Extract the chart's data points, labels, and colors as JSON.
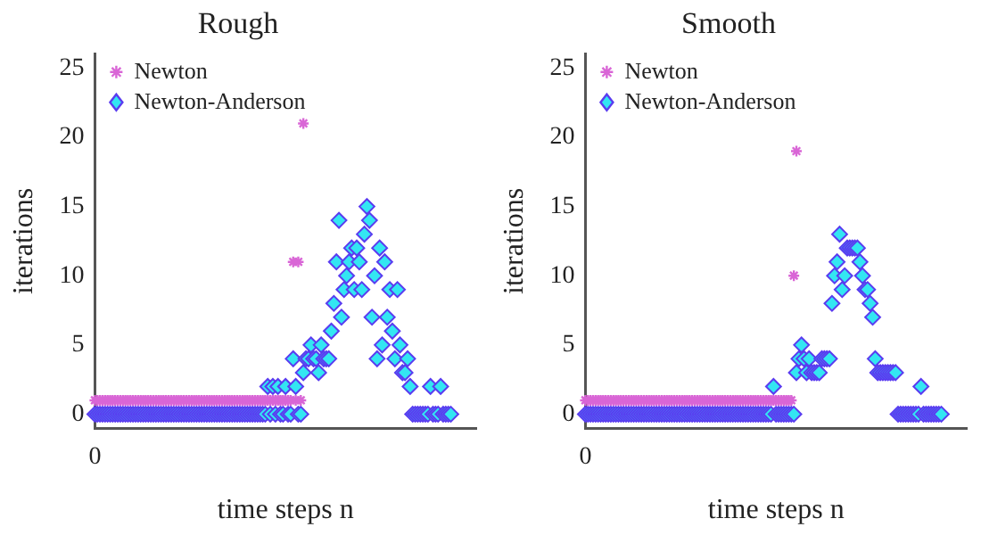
{
  "chart_data": [
    {
      "type": "scatter",
      "title": "Rough",
      "xlabel": "time steps n",
      "ylabel": "iterations",
      "categories": [
        "0",
        null,
        null,
        null,
        null,
        null,
        null,
        null,
        null,
        null,
        null,
        null,
        null,
        null,
        null,
        null,
        null,
        null,
        null,
        null,
        null,
        null,
        null,
        null,
        null,
        null,
        null,
        null,
        null,
        null,
        null,
        null,
        null,
        null,
        null,
        null,
        null,
        null,
        null,
        null,
        null,
        null,
        null,
        null,
        null,
        null,
        null,
        null,
        null,
        null,
        null,
        null,
        null,
        null,
        null,
        null,
        null,
        null,
        null,
        null,
        null,
        null,
        null,
        null,
        null,
        null,
        null,
        null,
        null,
        null,
        null,
        null,
        null,
        null,
        null,
        null,
        null,
        null,
        null,
        null,
        null,
        null,
        null,
        null,
        null,
        null,
        null,
        null,
        null,
        null,
        null,
        null,
        null,
        null,
        null,
        null,
        null,
        null,
        null,
        null,
        null,
        null,
        null,
        null,
        null,
        null,
        null,
        null,
        null,
        null,
        null,
        null,
        null,
        null,
        null,
        null,
        null,
        null,
        null,
        null,
        null,
        null,
        null,
        null,
        null,
        null,
        null,
        null,
        null,
        null,
        null,
        null,
        null,
        null,
        null,
        null,
        null,
        null,
        null,
        null,
        null,
        null,
        null,
        null,
        null,
        null,
        null,
        null,
        null,
        null,
        null
      ],
      "ylim": [
        -1,
        26
      ],
      "yticks": [
        0,
        5,
        10,
        15,
        20,
        25
      ],
      "grid": false,
      "legend": "top left",
      "series": [
        {
          "name": "Newton",
          "color": "#d966d6",
          "marker": "cross",
          "values": [
            1,
            1,
            1,
            1,
            1,
            1,
            1,
            1,
            1,
            1,
            1,
            1,
            1,
            1,
            1,
            1,
            1,
            1,
            1,
            1,
            1,
            1,
            1,
            1,
            1,
            1,
            1,
            1,
            1,
            1,
            1,
            1,
            1,
            1,
            1,
            1,
            1,
            1,
            1,
            1,
            1,
            1,
            1,
            1,
            1,
            1,
            1,
            1,
            1,
            1,
            1,
            1,
            1,
            1,
            1,
            1,
            1,
            1,
            1,
            1,
            1,
            1,
            1,
            1,
            1,
            1,
            1,
            1,
            1,
            1,
            1,
            1,
            1,
            1,
            1,
            1,
            1,
            1,
            11,
            1,
            11,
            1,
            21,
            null,
            null,
            null,
            null,
            null,
            null,
            null,
            null,
            null,
            null,
            null,
            null,
            null,
            null,
            null,
            null,
            null,
            null,
            null,
            null,
            null,
            null,
            null,
            null,
            null,
            null,
            null,
            null,
            null,
            null,
            null,
            null,
            null,
            null,
            null,
            null,
            null,
            null,
            null,
            null,
            null,
            null,
            null,
            null,
            null,
            null,
            null,
            null,
            null,
            null,
            null,
            null,
            null,
            null,
            null,
            null,
            null,
            null,
            null,
            null,
            null,
            null,
            null,
            null,
            null,
            null,
            null,
            null
          ]
        },
        {
          "name": "Newton-Anderson",
          "color": "#33e6f2",
          "marker": "diamond",
          "values": [
            0,
            0,
            0,
            0,
            0,
            0,
            0,
            0,
            0,
            0,
            0,
            0,
            0,
            0,
            0,
            0,
            0,
            0,
            0,
            0,
            0,
            0,
            0,
            0,
            0,
            0,
            0,
            0,
            0,
            0,
            0,
            0,
            0,
            0,
            0,
            0,
            0,
            0,
            0,
            0,
            0,
            0,
            0,
            0,
            0,
            0,
            0,
            0,
            0,
            0,
            0,
            0,
            0,
            0,
            0,
            0,
            0,
            0,
            0,
            0,
            0,
            0,
            0,
            0,
            0,
            0,
            0,
            0,
            2,
            0,
            2,
            0,
            2,
            0,
            0,
            2,
            0,
            0,
            4,
            2,
            0,
            0,
            3,
            4,
            4,
            5,
            4,
            4,
            3,
            5,
            4,
            4,
            4,
            6,
            8,
            11,
            14,
            7,
            9,
            10,
            11,
            12,
            9,
            12,
            11,
            9,
            13,
            15,
            14,
            7,
            10,
            4,
            12,
            5,
            11,
            7,
            9,
            6,
            4,
            9,
            5,
            3,
            3,
            4,
            2,
            0,
            0,
            0,
            0,
            0,
            0,
            0,
            2,
            0,
            0,
            0,
            2,
            0,
            0,
            0,
            0,
            null,
            null,
            null,
            null,
            null,
            null,
            null,
            null,
            null,
            null
          ]
        }
      ]
    },
    {
      "type": "scatter",
      "title": "Smooth",
      "xlabel": "time steps n",
      "ylabel": "iterations",
      "categories": [
        "0",
        null,
        null,
        null,
        null,
        null,
        null,
        null,
        null,
        null,
        null,
        null,
        null,
        null,
        null,
        null,
        null,
        null,
        null,
        null,
        null,
        null,
        null,
        null,
        null,
        null,
        null,
        null,
        null,
        null,
        null,
        null,
        null,
        null,
        null,
        null,
        null,
        null,
        null,
        null,
        null,
        null,
        null,
        null,
        null,
        null,
        null,
        null,
        null,
        null,
        null,
        null,
        null,
        null,
        null,
        null,
        null,
        null,
        null,
        null,
        null,
        null,
        null,
        null,
        null,
        null,
        null,
        null,
        null,
        null,
        null,
        null,
        null,
        null,
        null,
        null,
        null,
        null,
        null,
        null,
        null,
        null,
        null,
        null,
        null,
        null,
        null,
        null,
        null,
        null,
        null,
        null,
        null,
        null,
        null,
        null,
        null,
        null,
        null,
        null,
        null,
        null,
        null,
        null,
        null,
        null,
        null,
        null,
        null,
        null,
        null,
        null,
        null,
        null,
        null,
        null,
        null,
        null,
        null,
        null,
        null,
        null,
        null,
        null,
        null,
        null,
        null,
        null,
        null,
        null,
        null,
        null,
        null,
        null,
        null,
        null,
        null,
        null,
        null,
        null,
        null,
        null,
        null,
        null,
        null,
        null,
        null,
        null,
        null,
        null,
        null
      ],
      "ylim": [
        -1,
        26
      ],
      "yticks": [
        0,
        5,
        10,
        15,
        20,
        25
      ],
      "grid": false,
      "legend": "top left",
      "series": [
        {
          "name": "Newton",
          "color": "#d966d6",
          "marker": "cross",
          "values": [
            1,
            1,
            1,
            1,
            1,
            1,
            1,
            1,
            1,
            1,
            1,
            1,
            1,
            1,
            1,
            1,
            1,
            1,
            1,
            1,
            1,
            1,
            1,
            1,
            1,
            1,
            1,
            1,
            1,
            1,
            1,
            1,
            1,
            1,
            1,
            1,
            1,
            1,
            1,
            1,
            1,
            1,
            1,
            1,
            1,
            1,
            1,
            1,
            1,
            1,
            1,
            1,
            1,
            1,
            1,
            1,
            1,
            1,
            1,
            1,
            1,
            1,
            1,
            1,
            1,
            1,
            1,
            1,
            1,
            1,
            1,
            1,
            1,
            1,
            1,
            1,
            1,
            1,
            1,
            1,
            1,
            1,
            10,
            19,
            null,
            null,
            null,
            null,
            null,
            null,
            null,
            null,
            null,
            null,
            null,
            null,
            null,
            null,
            null,
            null,
            null,
            null,
            null,
            null,
            null,
            null,
            null,
            null,
            null,
            null,
            null,
            null,
            null,
            null,
            null,
            null,
            null,
            null,
            null,
            null,
            null,
            null,
            null,
            null,
            null,
            null,
            null,
            null,
            null,
            null,
            null,
            null,
            null,
            null,
            null,
            null,
            null,
            null,
            null,
            null,
            null,
            null,
            null,
            null,
            null,
            null,
            null,
            null,
            null,
            null,
            null
          ]
        },
        {
          "name": "Newton-Anderson",
          "color": "#33e6f2",
          "marker": "diamond",
          "values": [
            0,
            0,
            0,
            0,
            0,
            0,
            0,
            0,
            0,
            0,
            0,
            0,
            0,
            0,
            0,
            0,
            0,
            0,
            0,
            0,
            0,
            0,
            0,
            0,
            0,
            0,
            0,
            0,
            0,
            0,
            0,
            0,
            0,
            0,
            0,
            0,
            0,
            0,
            0,
            0,
            0,
            0,
            0,
            0,
            0,
            0,
            0,
            0,
            0,
            0,
            0,
            0,
            0,
            0,
            0,
            0,
            0,
            0,
            0,
            0,
            0,
            0,
            0,
            0,
            0,
            0,
            0,
            0,
            0,
            0,
            0,
            0,
            0,
            0,
            2,
            0,
            0,
            0,
            0,
            0,
            0,
            0,
            0,
            3,
            4,
            5,
            4,
            3,
            4,
            3,
            3,
            3,
            3,
            4,
            4,
            4,
            4,
            8,
            10,
            11,
            13,
            9,
            10,
            12,
            12,
            12,
            12,
            12,
            11,
            10,
            9,
            9,
            8,
            7,
            4,
            3,
            3,
            3,
            3,
            3,
            3,
            3,
            3,
            0,
            0,
            0,
            0,
            0,
            0,
            0,
            0,
            0,
            2,
            0,
            0,
            0,
            0,
            0,
            0,
            0,
            0,
            null,
            null,
            null,
            null,
            null,
            null,
            null,
            null,
            null,
            null
          ]
        }
      ]
    }
  ]
}
